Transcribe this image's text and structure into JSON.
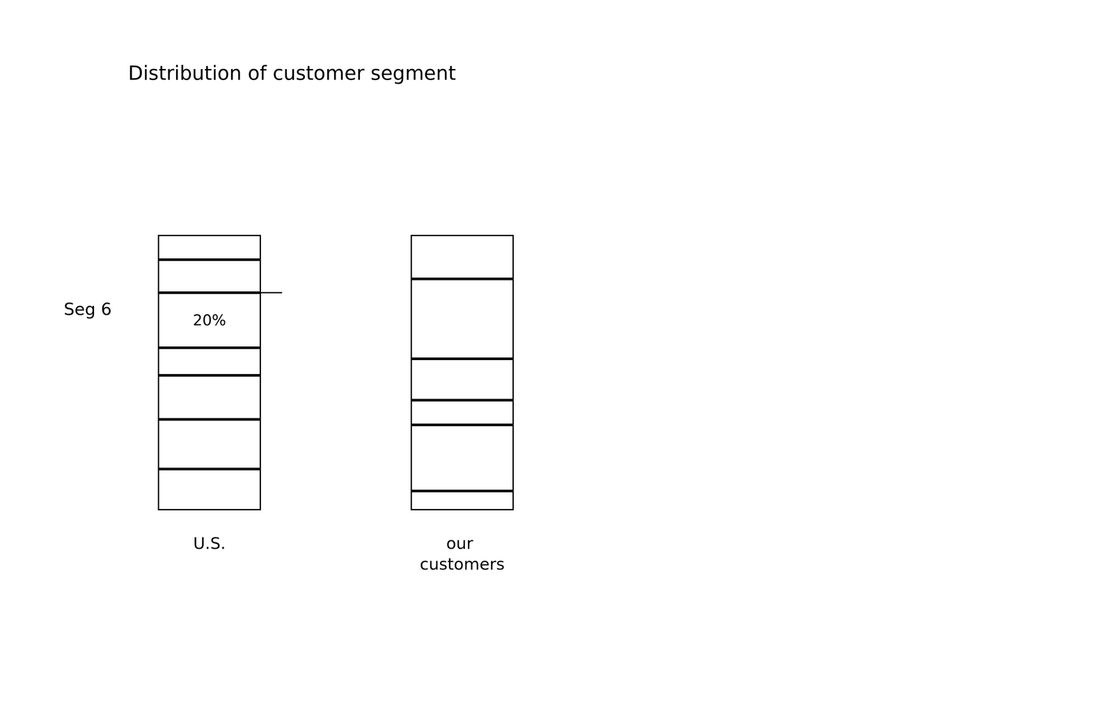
{
  "chart_data": {
    "type": "bar",
    "title": "Distribution of customer segment",
    "categories": [
      "U.S.",
      "our customers"
    ],
    "stacked": true,
    "color": "#ffffff",
    "ylim": [
      0,
      100
    ],
    "tick_labels": false,
    "series": [
      {
        "values": [
          15,
          7
        ]
      },
      {
        "values": [
          18,
          24
        ]
      },
      {
        "values": [
          16,
          9
        ]
      },
      {
        "values": [
          10,
          15
        ]
      },
      {
        "name": "Seg 6",
        "values": [
          20,
          29
        ],
        "value_labels": [
          "20%",
          null
        ]
      },
      {
        "values": [
          12,
          16
        ]
      },
      {
        "values": [
          9,
          null
        ]
      }
    ]
  }
}
